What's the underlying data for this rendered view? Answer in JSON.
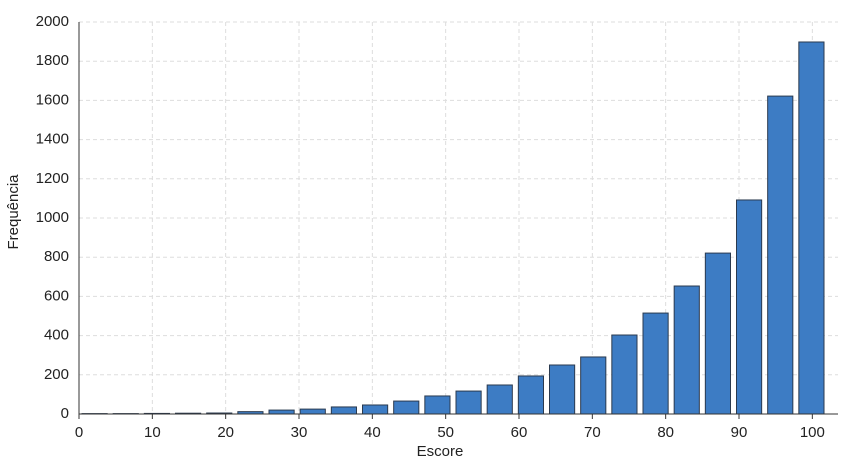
{
  "chart_data": {
    "type": "histogram",
    "xlabel": "Escore",
    "ylabel": "Frequência",
    "bins": [
      0,
      4.25,
      8.5,
      12.75,
      17,
      21.25,
      25.5,
      29.75,
      34,
      38.25,
      42.5,
      46.75,
      51,
      55.25,
      59.5,
      63.75,
      68,
      72.25,
      76.5,
      80.75,
      85,
      89.25,
      93.5,
      97.75,
      102
    ],
    "values": [
      2,
      2,
      3,
      4,
      5,
      12,
      20,
      25,
      36,
      46,
      66,
      92,
      117,
      148,
      194,
      250,
      291,
      403,
      515,
      653,
      821,
      1092,
      1622,
      1898
    ],
    "color": "#3d7cc4",
    "edgecolor": "#2a3a4f",
    "xlim": [
      0,
      103.5
    ],
    "ylim": [
      0,
      2000
    ],
    "xticks": [
      0,
      10,
      20,
      30,
      40,
      50,
      60,
      70,
      80,
      90,
      100
    ],
    "yticks": [
      0,
      200,
      400,
      600,
      800,
      1000,
      1200,
      1400,
      1600,
      1800,
      2000
    ],
    "grid": true
  }
}
